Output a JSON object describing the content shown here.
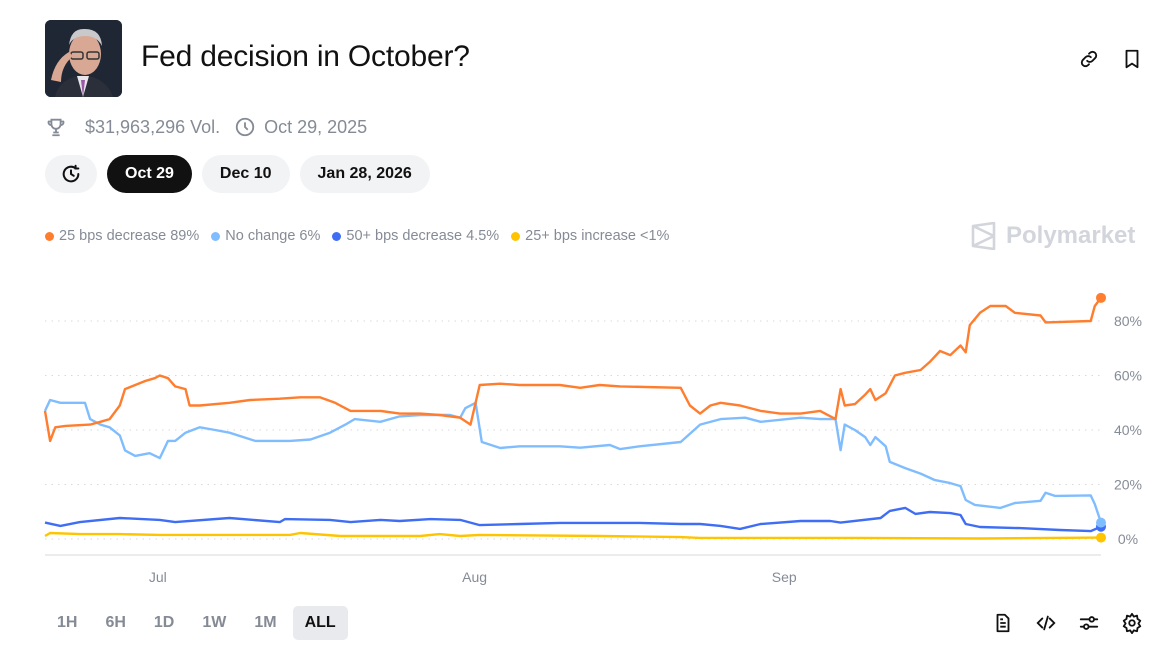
{
  "header": {
    "title": "Fed decision in October?",
    "volume": "$31,963,296 Vol.",
    "end_date": "Oct 29, 2025"
  },
  "date_tabs": [
    {
      "label": "Oct 29",
      "active": true
    },
    {
      "label": "Dec 10",
      "active": false
    },
    {
      "label": "Jan 28, 2026",
      "active": false
    }
  ],
  "brand": "Polymarket",
  "ranges": [
    {
      "label": "1H"
    },
    {
      "label": "6H"
    },
    {
      "label": "1D"
    },
    {
      "label": "1W"
    },
    {
      "label": "1M"
    },
    {
      "label": "ALL",
      "active": true
    }
  ],
  "chart_data": {
    "type": "line",
    "x_unit": "days since Jun 20",
    "xlim": [
      0,
      103
    ],
    "ylim": [
      0,
      100
    ],
    "yticks": [
      {
        "v": 0,
        "label": "0%"
      },
      {
        "v": 20,
        "label": "20%"
      },
      {
        "v": 40,
        "label": "40%"
      },
      {
        "v": 60,
        "label": "60%"
      },
      {
        "v": 80,
        "label": "80%"
      }
    ],
    "xticks": [
      {
        "v": 11,
        "label": "Jul"
      },
      {
        "v": 41.9,
        "label": "Aug"
      },
      {
        "v": 72.1,
        "label": "Sep"
      }
    ],
    "grid": true,
    "legend_position": "top-left",
    "series": [
      {
        "name": "25 bps decrease",
        "legend": "25 bps decrease 89%",
        "color": "#ff7d2e",
        "points": [
          [
            0,
            47
          ],
          [
            0.5,
            36
          ],
          [
            1,
            41
          ],
          [
            2,
            41.5
          ],
          [
            4.4,
            42
          ],
          [
            5.4,
            43
          ],
          [
            6.3,
            44
          ],
          [
            7.3,
            49
          ],
          [
            7.8,
            55
          ],
          [
            8.8,
            56.5
          ],
          [
            9.8,
            58
          ],
          [
            10.7,
            59
          ],
          [
            11.2,
            60
          ],
          [
            12,
            59
          ],
          [
            12.7,
            56
          ],
          [
            13.7,
            55
          ],
          [
            14.1,
            49
          ],
          [
            15.1,
            49
          ],
          [
            18,
            50
          ],
          [
            20,
            51
          ],
          [
            22.9,
            51.5
          ],
          [
            24.9,
            52
          ],
          [
            26.8,
            52
          ],
          [
            28.3,
            50
          ],
          [
            29.8,
            47
          ],
          [
            32.7,
            47
          ],
          [
            34.6,
            46
          ],
          [
            36.6,
            46
          ],
          [
            38.5,
            45.5
          ],
          [
            40.5,
            44.5
          ],
          [
            41.5,
            42
          ],
          [
            42.4,
            56.5
          ],
          [
            44.4,
            57
          ],
          [
            46.3,
            56.5
          ],
          [
            50.2,
            56.5
          ],
          [
            52.2,
            55.5
          ],
          [
            54.1,
            56.5
          ],
          [
            56.1,
            56
          ],
          [
            62,
            55.5
          ],
          [
            62.9,
            49
          ],
          [
            63.9,
            46
          ],
          [
            64.9,
            49
          ],
          [
            65.9,
            50
          ],
          [
            67.8,
            49
          ],
          [
            69.8,
            47
          ],
          [
            71.7,
            46
          ],
          [
            73.7,
            46
          ],
          [
            75.6,
            47
          ],
          [
            77.1,
            44
          ],
          [
            77.6,
            55
          ],
          [
            78,
            49
          ],
          [
            79,
            49.5
          ],
          [
            80,
            53
          ],
          [
            80.5,
            55
          ],
          [
            81,
            51
          ],
          [
            82,
            53.5
          ],
          [
            82.9,
            60
          ],
          [
            83.9,
            61
          ],
          [
            85.4,
            62
          ],
          [
            86.3,
            65
          ],
          [
            87.3,
            69
          ],
          [
            88.3,
            67.5
          ],
          [
            89.3,
            71
          ],
          [
            89.8,
            68.5
          ],
          [
            90.2,
            78.5
          ],
          [
            91.2,
            83
          ],
          [
            92.2,
            85.5
          ],
          [
            93.7,
            85.5
          ],
          [
            94.6,
            83
          ],
          [
            97.1,
            82
          ],
          [
            97.6,
            79.5
          ],
          [
            102,
            80
          ],
          [
            102.4,
            85.5
          ],
          [
            103,
            88.5
          ]
        ]
      },
      {
        "name": "No change",
        "legend": "No change 6%",
        "color": "#80bdff",
        "points": [
          [
            0,
            47
          ],
          [
            0.5,
            51
          ],
          [
            1.5,
            50
          ],
          [
            3.9,
            50
          ],
          [
            4.4,
            44
          ],
          [
            5.4,
            42
          ],
          [
            6.3,
            41
          ],
          [
            7.3,
            38
          ],
          [
            7.8,
            32.5
          ],
          [
            8.8,
            30.5
          ],
          [
            10.2,
            31.5
          ],
          [
            11.2,
            29.7
          ],
          [
            12,
            36
          ],
          [
            12.7,
            36
          ],
          [
            13.7,
            39
          ],
          [
            15.1,
            41
          ],
          [
            16.6,
            40
          ],
          [
            18,
            39
          ],
          [
            20.5,
            36
          ],
          [
            22.4,
            36
          ],
          [
            23.9,
            36
          ],
          [
            25.9,
            36.5
          ],
          [
            27.8,
            39
          ],
          [
            29.3,
            42
          ],
          [
            30.2,
            44
          ],
          [
            32.7,
            43
          ],
          [
            34.6,
            45
          ],
          [
            36.6,
            45.5
          ],
          [
            39.5,
            45.5
          ],
          [
            40.5,
            44.5
          ],
          [
            41,
            48
          ],
          [
            42,
            50
          ],
          [
            42.6,
            35.6
          ],
          [
            44.4,
            33.4
          ],
          [
            46.3,
            34
          ],
          [
            50.2,
            34
          ],
          [
            52.2,
            33.5
          ],
          [
            55.1,
            34.5
          ],
          [
            56.1,
            33
          ],
          [
            58,
            34
          ],
          [
            62,
            35.6
          ],
          [
            63.9,
            42
          ],
          [
            65.9,
            44
          ],
          [
            68.3,
            44.5
          ],
          [
            69.8,
            43
          ],
          [
            73.7,
            44.5
          ],
          [
            75.6,
            44
          ],
          [
            77.1,
            44
          ],
          [
            77.6,
            32.6
          ],
          [
            78,
            42
          ],
          [
            79,
            40
          ],
          [
            80,
            37.4
          ],
          [
            80.5,
            34.5
          ],
          [
            81,
            37.4
          ],
          [
            82,
            34
          ],
          [
            82.4,
            28.3
          ],
          [
            83.9,
            26
          ],
          [
            85.4,
            24
          ],
          [
            86.8,
            21.6
          ],
          [
            88.3,
            20.5
          ],
          [
            89.3,
            19.4
          ],
          [
            89.8,
            14.3
          ],
          [
            90.7,
            12.5
          ],
          [
            93.2,
            11.4
          ],
          [
            94.6,
            13.2
          ],
          [
            97.1,
            14
          ],
          [
            97.6,
            17
          ],
          [
            98.5,
            15.8
          ],
          [
            102,
            16
          ],
          [
            102.4,
            12.8
          ],
          [
            103,
            6
          ]
        ]
      },
      {
        "name": "50+ bps decrease",
        "legend": "50+ bps decrease 4.5%",
        "color": "#3f6ef5",
        "points": [
          [
            0,
            6
          ],
          [
            1.5,
            4.8
          ],
          [
            3.4,
            6.2
          ],
          [
            7.3,
            7.7
          ],
          [
            11.2,
            7
          ],
          [
            12.7,
            6.2
          ],
          [
            18,
            7.7
          ],
          [
            22.9,
            6.2
          ],
          [
            23.4,
            7.3
          ],
          [
            27.8,
            7
          ],
          [
            29.8,
            6.2
          ],
          [
            32.7,
            7
          ],
          [
            34.6,
            6.6
          ],
          [
            37.6,
            7.3
          ],
          [
            40.5,
            7
          ],
          [
            42.4,
            5.1
          ],
          [
            46.3,
            5.5
          ],
          [
            50.2,
            5.9
          ],
          [
            54.1,
            5.9
          ],
          [
            58,
            5.9
          ],
          [
            62,
            5.5
          ],
          [
            63.9,
            5.5
          ],
          [
            65.9,
            4.8
          ],
          [
            67.8,
            3.7
          ],
          [
            69.8,
            5.5
          ],
          [
            73.7,
            6.6
          ],
          [
            76.6,
            6.6
          ],
          [
            77.6,
            6
          ],
          [
            81.5,
            7.7
          ],
          [
            82.4,
            10.3
          ],
          [
            83.9,
            11.4
          ],
          [
            84.9,
            9.2
          ],
          [
            86.3,
            9.9
          ],
          [
            88.3,
            9.5
          ],
          [
            89.3,
            8.8
          ],
          [
            89.8,
            5.5
          ],
          [
            91.2,
            4.4
          ],
          [
            95.1,
            4
          ],
          [
            99,
            3.3
          ],
          [
            102,
            2.9
          ],
          [
            103,
            4.5
          ]
        ]
      },
      {
        "name": "25+ bps increase",
        "legend": "25+ bps increase <1%",
        "color": "#ffc400",
        "points": [
          [
            0,
            1.1
          ],
          [
            0.5,
            2.2
          ],
          [
            3.4,
            1.8
          ],
          [
            7.3,
            1.8
          ],
          [
            11.2,
            1.5
          ],
          [
            15.1,
            1.5
          ],
          [
            21,
            1.5
          ],
          [
            23.9,
            1.5
          ],
          [
            24.9,
            2.2
          ],
          [
            28.8,
            1.1
          ],
          [
            36.6,
            1.1
          ],
          [
            38.5,
            1.8
          ],
          [
            40.5,
            1.1
          ],
          [
            42.4,
            1.5
          ],
          [
            54.1,
            1.1
          ],
          [
            62,
            0.7
          ],
          [
            63.9,
            0.4
          ],
          [
            73.7,
            0.4
          ],
          [
            79.5,
            0.4
          ],
          [
            91.2,
            0.2
          ],
          [
            103,
            0.5
          ]
        ]
      }
    ]
  }
}
